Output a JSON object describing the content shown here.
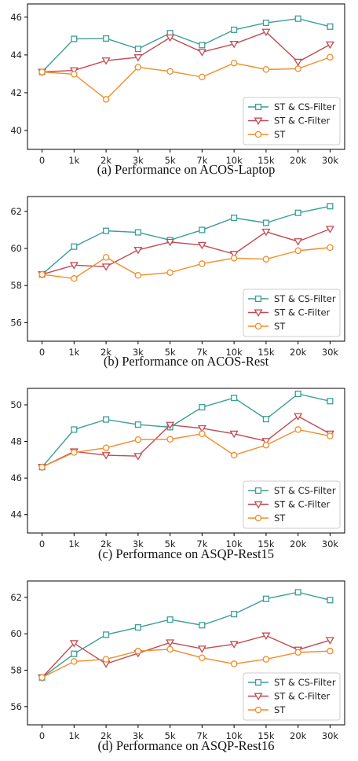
{
  "colors": {
    "st_cs_filter": "#3a9e96",
    "st_c_filter": "#c24a52",
    "st": "#f28c28"
  },
  "chart_data": [
    {
      "type": "line",
      "caption": "(a)  Performance on ACOS-Laptop",
      "categories": [
        "0",
        "1k",
        "2k",
        "3k",
        "5k",
        "7k",
        "10k",
        "15k",
        "20k",
        "30k"
      ],
      "ylim": [
        39,
        46.7
      ],
      "yticks": [
        40,
        42,
        44,
        46
      ],
      "legend": "bottom-right",
      "series": [
        {
          "name": "ST & CS-Filter",
          "marker": "square",
          "values": [
            43.1,
            44.85,
            44.87,
            44.32,
            45.15,
            44.52,
            45.33,
            45.7,
            45.92,
            45.5
          ]
        },
        {
          "name": "ST & C-Filter",
          "marker": "triangle-down",
          "values": [
            43.1,
            43.18,
            43.7,
            43.87,
            44.92,
            44.15,
            44.58,
            45.22,
            43.63,
            44.55
          ]
        },
        {
          "name": "ST",
          "marker": "circle",
          "values": [
            43.1,
            42.98,
            41.65,
            43.35,
            43.13,
            42.83,
            43.57,
            43.23,
            43.27,
            43.88
          ]
        }
      ]
    },
    {
      "type": "line",
      "caption": "(b)  Performance on ACOS-Rest",
      "categories": [
        "0",
        "1k",
        "2k",
        "3k",
        "5k",
        "7k",
        "10k",
        "15k",
        "20k",
        "30k"
      ],
      "ylim": [
        55,
        62.8
      ],
      "yticks": [
        56,
        58,
        60,
        62
      ],
      "legend": "bottom-right",
      "series": [
        {
          "name": "ST & CS-Filter",
          "marker": "square",
          "values": [
            58.6,
            60.1,
            60.95,
            60.87,
            60.45,
            61.0,
            61.65,
            61.38,
            61.92,
            62.28
          ]
        },
        {
          "name": "ST & C-Filter",
          "marker": "triangle-down",
          "values": [
            58.6,
            59.1,
            59.02,
            59.92,
            60.35,
            60.18,
            59.7,
            60.9,
            60.38,
            61.05
          ]
        },
        {
          "name": "ST",
          "marker": "circle",
          "values": [
            58.6,
            58.38,
            59.52,
            58.55,
            58.7,
            59.18,
            59.48,
            59.42,
            59.88,
            60.05
          ]
        }
      ]
    },
    {
      "type": "line",
      "caption": "(c)  Performance on ASQP-Rest15",
      "categories": [
        "0",
        "1k",
        "2k",
        "3k",
        "5k",
        "7k",
        "10k",
        "15k",
        "20k",
        "30k"
      ],
      "ylim": [
        43,
        50.9
      ],
      "yticks": [
        44,
        46,
        48,
        50
      ],
      "legend": "bottom-right",
      "series": [
        {
          "name": "ST & CS-Filter",
          "marker": "square",
          "values": [
            46.6,
            48.65,
            49.2,
            48.92,
            48.78,
            49.87,
            50.38,
            49.22,
            50.6,
            50.2
          ]
        },
        {
          "name": "ST & C-Filter",
          "marker": "triangle-down",
          "values": [
            46.6,
            47.45,
            47.25,
            47.2,
            48.9,
            48.72,
            48.42,
            48.02,
            49.38,
            48.42
          ]
        },
        {
          "name": "ST",
          "marker": "circle",
          "values": [
            46.6,
            47.4,
            47.65,
            48.1,
            48.12,
            48.42,
            47.25,
            47.8,
            48.65,
            48.3
          ]
        }
      ]
    },
    {
      "type": "line",
      "caption": "(d)  Performance on ASQP-Rest16",
      "categories": [
        "0",
        "1k",
        "2k",
        "3k",
        "5k",
        "7k",
        "10k",
        "15k",
        "20k",
        "30k"
      ],
      "ylim": [
        55,
        62.9
      ],
      "yticks": [
        56,
        58,
        60,
        62
      ],
      "legend": "bottom-right",
      "series": [
        {
          "name": "ST & CS-Filter",
          "marker": "square",
          "values": [
            57.6,
            58.9,
            59.95,
            60.35,
            60.78,
            60.47,
            61.08,
            61.92,
            62.28,
            61.85
          ]
        },
        {
          "name": "ST & C-Filter",
          "marker": "triangle-down",
          "values": [
            57.6,
            59.48,
            58.35,
            58.93,
            59.52,
            59.18,
            59.43,
            59.9,
            59.12,
            59.65
          ]
        },
        {
          "name": "ST",
          "marker": "circle",
          "values": [
            57.6,
            58.48,
            58.6,
            59.05,
            59.15,
            58.68,
            58.35,
            58.6,
            58.98,
            59.05
          ]
        }
      ]
    }
  ]
}
